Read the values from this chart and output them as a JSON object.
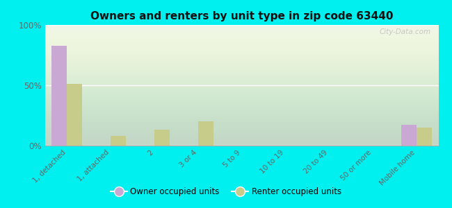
{
  "title": "Owners and renters by unit type in zip code 63440",
  "categories": [
    "1, detached",
    "1, attached",
    "2",
    "3 or 4",
    "5 to 9",
    "10 to 19",
    "20 to 49",
    "50 or more",
    "Mobile home"
  ],
  "owner_values": [
    83,
    0,
    0,
    0,
    0,
    0,
    0,
    0,
    17
  ],
  "renter_values": [
    51,
    8,
    13,
    20,
    0,
    0,
    0,
    0,
    15
  ],
  "owner_color": "#c9a8d4",
  "renter_color": "#c8cc8a",
  "background_color": "#00efef",
  "ylim": [
    0,
    100
  ],
  "yticks": [
    0,
    50,
    100
  ],
  "ytick_labels": [
    "0%",
    "50%",
    "100%"
  ],
  "watermark": "City-Data.com",
  "legend_owner": "Owner occupied units",
  "legend_renter": "Renter occupied units",
  "bar_width": 0.35
}
